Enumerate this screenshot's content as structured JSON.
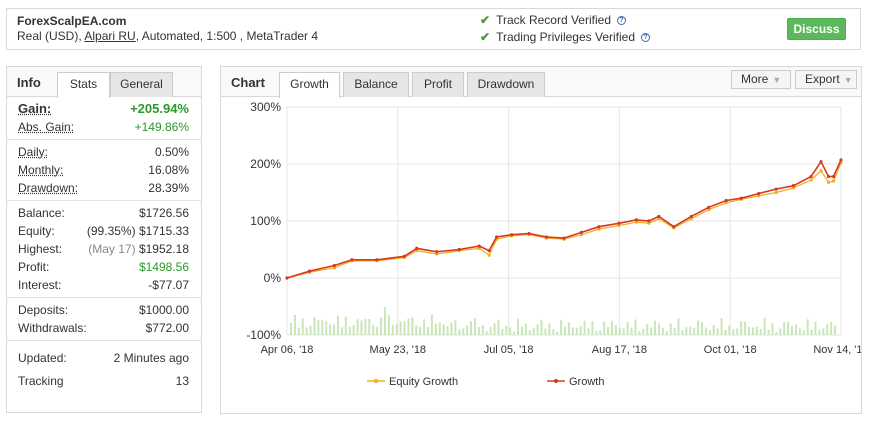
{
  "header": {
    "system_name": "ForexScalpEA.com",
    "meta_prefix": "Real (USD), ",
    "broker": "Alpari RU",
    "meta_suffix": ", Automated, 1:500 , MetaTrader 4",
    "verif1": "Track Record Verified",
    "verif2": "Trading Privileges Verified",
    "help_glyph": "?",
    "discuss_label": "Discuss"
  },
  "info": {
    "title": "Info",
    "tabs": [
      "Stats",
      "General"
    ],
    "gain_label": "Gain:",
    "gain_value": "+205.94%",
    "abs_gain_label": "Abs. Gain:",
    "abs_gain_value": "+149.86%",
    "daily_label": "Daily:",
    "daily_value": "0.50%",
    "monthly_label": "Monthly:",
    "monthly_value": "16.08%",
    "drawdown_label": "Drawdown:",
    "drawdown_value": "28.39%",
    "balance_label": "Balance:",
    "balance_value": "$1726.56",
    "equity_label": "Equity:",
    "equity_note": "(99.35%)",
    "equity_value": "$1715.33",
    "highest_label": "Highest:",
    "highest_note": "(May 17)",
    "highest_value": "$1952.18",
    "profit_label": "Profit:",
    "profit_value": "$1498.56",
    "interest_label": "Interest:",
    "interest_value": "-$77.07",
    "deposits_label": "Deposits:",
    "deposits_value": "$1000.00",
    "withdrawals_label": "Withdrawals:",
    "withdrawals_value": "$772.00",
    "updated_label": "Updated:",
    "updated_value": "2 Minutes ago",
    "tracking_label": "Tracking",
    "tracking_value": "13"
  },
  "chart": {
    "title": "Chart",
    "tabs": [
      "Growth",
      "Balance",
      "Profit",
      "Drawdown"
    ],
    "more_label": "More",
    "export_label": "Export",
    "dropdown_glyph": "▼",
    "colors": {
      "equity": "#f0ad1c",
      "growth": "#d9381e",
      "bars": "#c9e6b8",
      "grid": "#e6e6e6"
    }
  },
  "chart_data": {
    "type": "line",
    "title": "",
    "xlabel": "",
    "ylabel": "",
    "ylim": [
      -100,
      300
    ],
    "yticks": [
      300,
      200,
      100,
      0,
      -100
    ],
    "ytick_labels": [
      "300%",
      "200%",
      "100%",
      "0%",
      "-100%"
    ],
    "xtick_labels": [
      "Apr 06, '18",
      "May 23, '18",
      "Jul 05, '18",
      "Aug 17, '18",
      "Oct 01, '18",
      "Nov 14, '18"
    ],
    "x_domain": [
      "2018-04-06",
      "2018-11-14"
    ],
    "grid": true,
    "legend_position": "bottom",
    "series": [
      {
        "name": "Equity Growth",
        "points": [
          [
            "2018-04-06",
            0
          ],
          [
            "2018-04-15",
            10
          ],
          [
            "2018-04-25",
            18
          ],
          [
            "2018-05-02",
            30
          ],
          [
            "2018-05-12",
            30
          ],
          [
            "2018-05-23",
            36
          ],
          [
            "2018-05-28",
            48
          ],
          [
            "2018-06-05",
            42
          ],
          [
            "2018-06-14",
            48
          ],
          [
            "2018-06-22",
            52
          ],
          [
            "2018-06-26",
            40
          ],
          [
            "2018-06-29",
            68
          ],
          [
            "2018-07-05",
            74
          ],
          [
            "2018-07-12",
            76
          ],
          [
            "2018-07-19",
            70
          ],
          [
            "2018-07-26",
            68
          ],
          [
            "2018-08-02",
            76
          ],
          [
            "2018-08-09",
            86
          ],
          [
            "2018-08-17",
            92
          ],
          [
            "2018-08-24",
            98
          ],
          [
            "2018-08-29",
            96
          ],
          [
            "2018-09-02",
            104
          ],
          [
            "2018-09-08",
            88
          ],
          [
            "2018-09-15",
            104
          ],
          [
            "2018-09-22",
            120
          ],
          [
            "2018-09-29",
            132
          ],
          [
            "2018-10-05",
            138
          ],
          [
            "2018-10-12",
            144
          ],
          [
            "2018-10-19",
            150
          ],
          [
            "2018-10-26",
            158
          ],
          [
            "2018-11-02",
            172
          ],
          [
            "2018-11-06",
            188
          ],
          [
            "2018-11-09",
            168
          ],
          [
            "2018-11-11",
            170
          ],
          [
            "2018-11-14",
            202
          ]
        ]
      },
      {
        "name": "Growth",
        "points": [
          [
            "2018-04-06",
            0
          ],
          [
            "2018-04-15",
            12
          ],
          [
            "2018-04-25",
            22
          ],
          [
            "2018-05-02",
            32
          ],
          [
            "2018-05-12",
            32
          ],
          [
            "2018-05-23",
            38
          ],
          [
            "2018-05-28",
            52
          ],
          [
            "2018-06-05",
            46
          ],
          [
            "2018-06-14",
            50
          ],
          [
            "2018-06-22",
            56
          ],
          [
            "2018-06-26",
            48
          ],
          [
            "2018-06-29",
            72
          ],
          [
            "2018-07-05",
            76
          ],
          [
            "2018-07-12",
            78
          ],
          [
            "2018-07-19",
            72
          ],
          [
            "2018-07-26",
            70
          ],
          [
            "2018-08-02",
            80
          ],
          [
            "2018-08-09",
            90
          ],
          [
            "2018-08-17",
            96
          ],
          [
            "2018-08-24",
            102
          ],
          [
            "2018-08-29",
            100
          ],
          [
            "2018-09-02",
            108
          ],
          [
            "2018-09-08",
            90
          ],
          [
            "2018-09-15",
            108
          ],
          [
            "2018-09-22",
            124
          ],
          [
            "2018-09-29",
            136
          ],
          [
            "2018-10-05",
            140
          ],
          [
            "2018-10-12",
            148
          ],
          [
            "2018-10-19",
            156
          ],
          [
            "2018-10-26",
            162
          ],
          [
            "2018-11-02",
            178
          ],
          [
            "2018-11-06",
            204
          ],
          [
            "2018-11-09",
            178
          ],
          [
            "2018-11-11",
            178
          ],
          [
            "2018-11-14",
            207
          ]
        ]
      }
    ]
  }
}
